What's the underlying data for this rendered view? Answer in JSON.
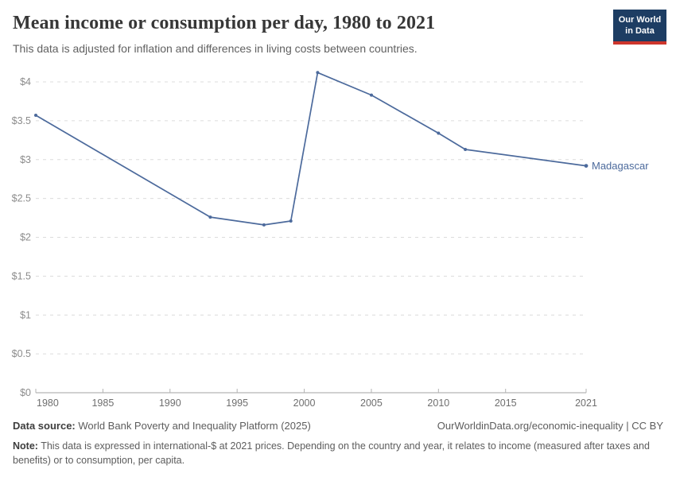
{
  "header": {
    "title": "Mean income or consumption per day, 1980 to 2021",
    "subtitle": "This data is adjusted for inflation and differences in living costs between countries.",
    "logo": {
      "line1": "Our World",
      "line2": "in Data"
    }
  },
  "chart_data": {
    "type": "line",
    "title": "Mean income or consumption per day, 1980 to 2021",
    "xlabel": "",
    "ylabel": "",
    "x_range": [
      1980,
      2021
    ],
    "y_range": [
      0,
      4.2
    ],
    "grid": "horizontal-dashed",
    "legend_position": "end-of-line-label",
    "series": [
      {
        "name": "Madagascar",
        "points": [
          [
            1980,
            3.57
          ],
          [
            1993,
            2.26
          ],
          [
            1997,
            2.16
          ],
          [
            1999,
            2.21
          ],
          [
            2001,
            4.12
          ],
          [
            2005,
            3.83
          ],
          [
            2010,
            3.34
          ],
          [
            2012,
            3.13
          ],
          [
            2021,
            2.92
          ]
        ]
      }
    ],
    "x_ticks": [
      {
        "v": 1980,
        "label": "1980"
      },
      {
        "v": 1985,
        "label": "1985"
      },
      {
        "v": 1990,
        "label": "1990"
      },
      {
        "v": 1995,
        "label": "1995"
      },
      {
        "v": 2000,
        "label": "2000"
      },
      {
        "v": 2005,
        "label": "2005"
      },
      {
        "v": 2010,
        "label": "2010"
      },
      {
        "v": 2015,
        "label": "2015"
      },
      {
        "v": 2021,
        "label": "2021"
      }
    ],
    "y_ticks": [
      {
        "v": 0,
        "label": "$0"
      },
      {
        "v": 0.5,
        "label": "$0.5"
      },
      {
        "v": 1,
        "label": "$1"
      },
      {
        "v": 1.5,
        "label": "$1.5"
      },
      {
        "v": 2,
        "label": "$2"
      },
      {
        "v": 2.5,
        "label": "$2.5"
      },
      {
        "v": 3,
        "label": "$3"
      },
      {
        "v": 3.5,
        "label": "$3.5"
      },
      {
        "v": 4,
        "label": "$4"
      }
    ],
    "colors": {
      "line": "#4c6a9c",
      "grid": "#dcdcdc",
      "axis": "#a3a3a3",
      "tick": "#b3b3b3",
      "y_tick_label": "#8c8c8c",
      "x_tick_label": "#6e6e6e"
    }
  },
  "footer": {
    "data_source_label": "Data source:",
    "data_source": " World Bank Poverty and Inequality Platform (2025)",
    "rights": "OurWorldinData.org/economic-inequality | CC BY",
    "note_label": "Note:",
    "note": " This data is expressed in international-$ at 2021 prices. Depending on the country and year, it relates to income (measured after taxes and benefits) or to consumption, per capita."
  }
}
